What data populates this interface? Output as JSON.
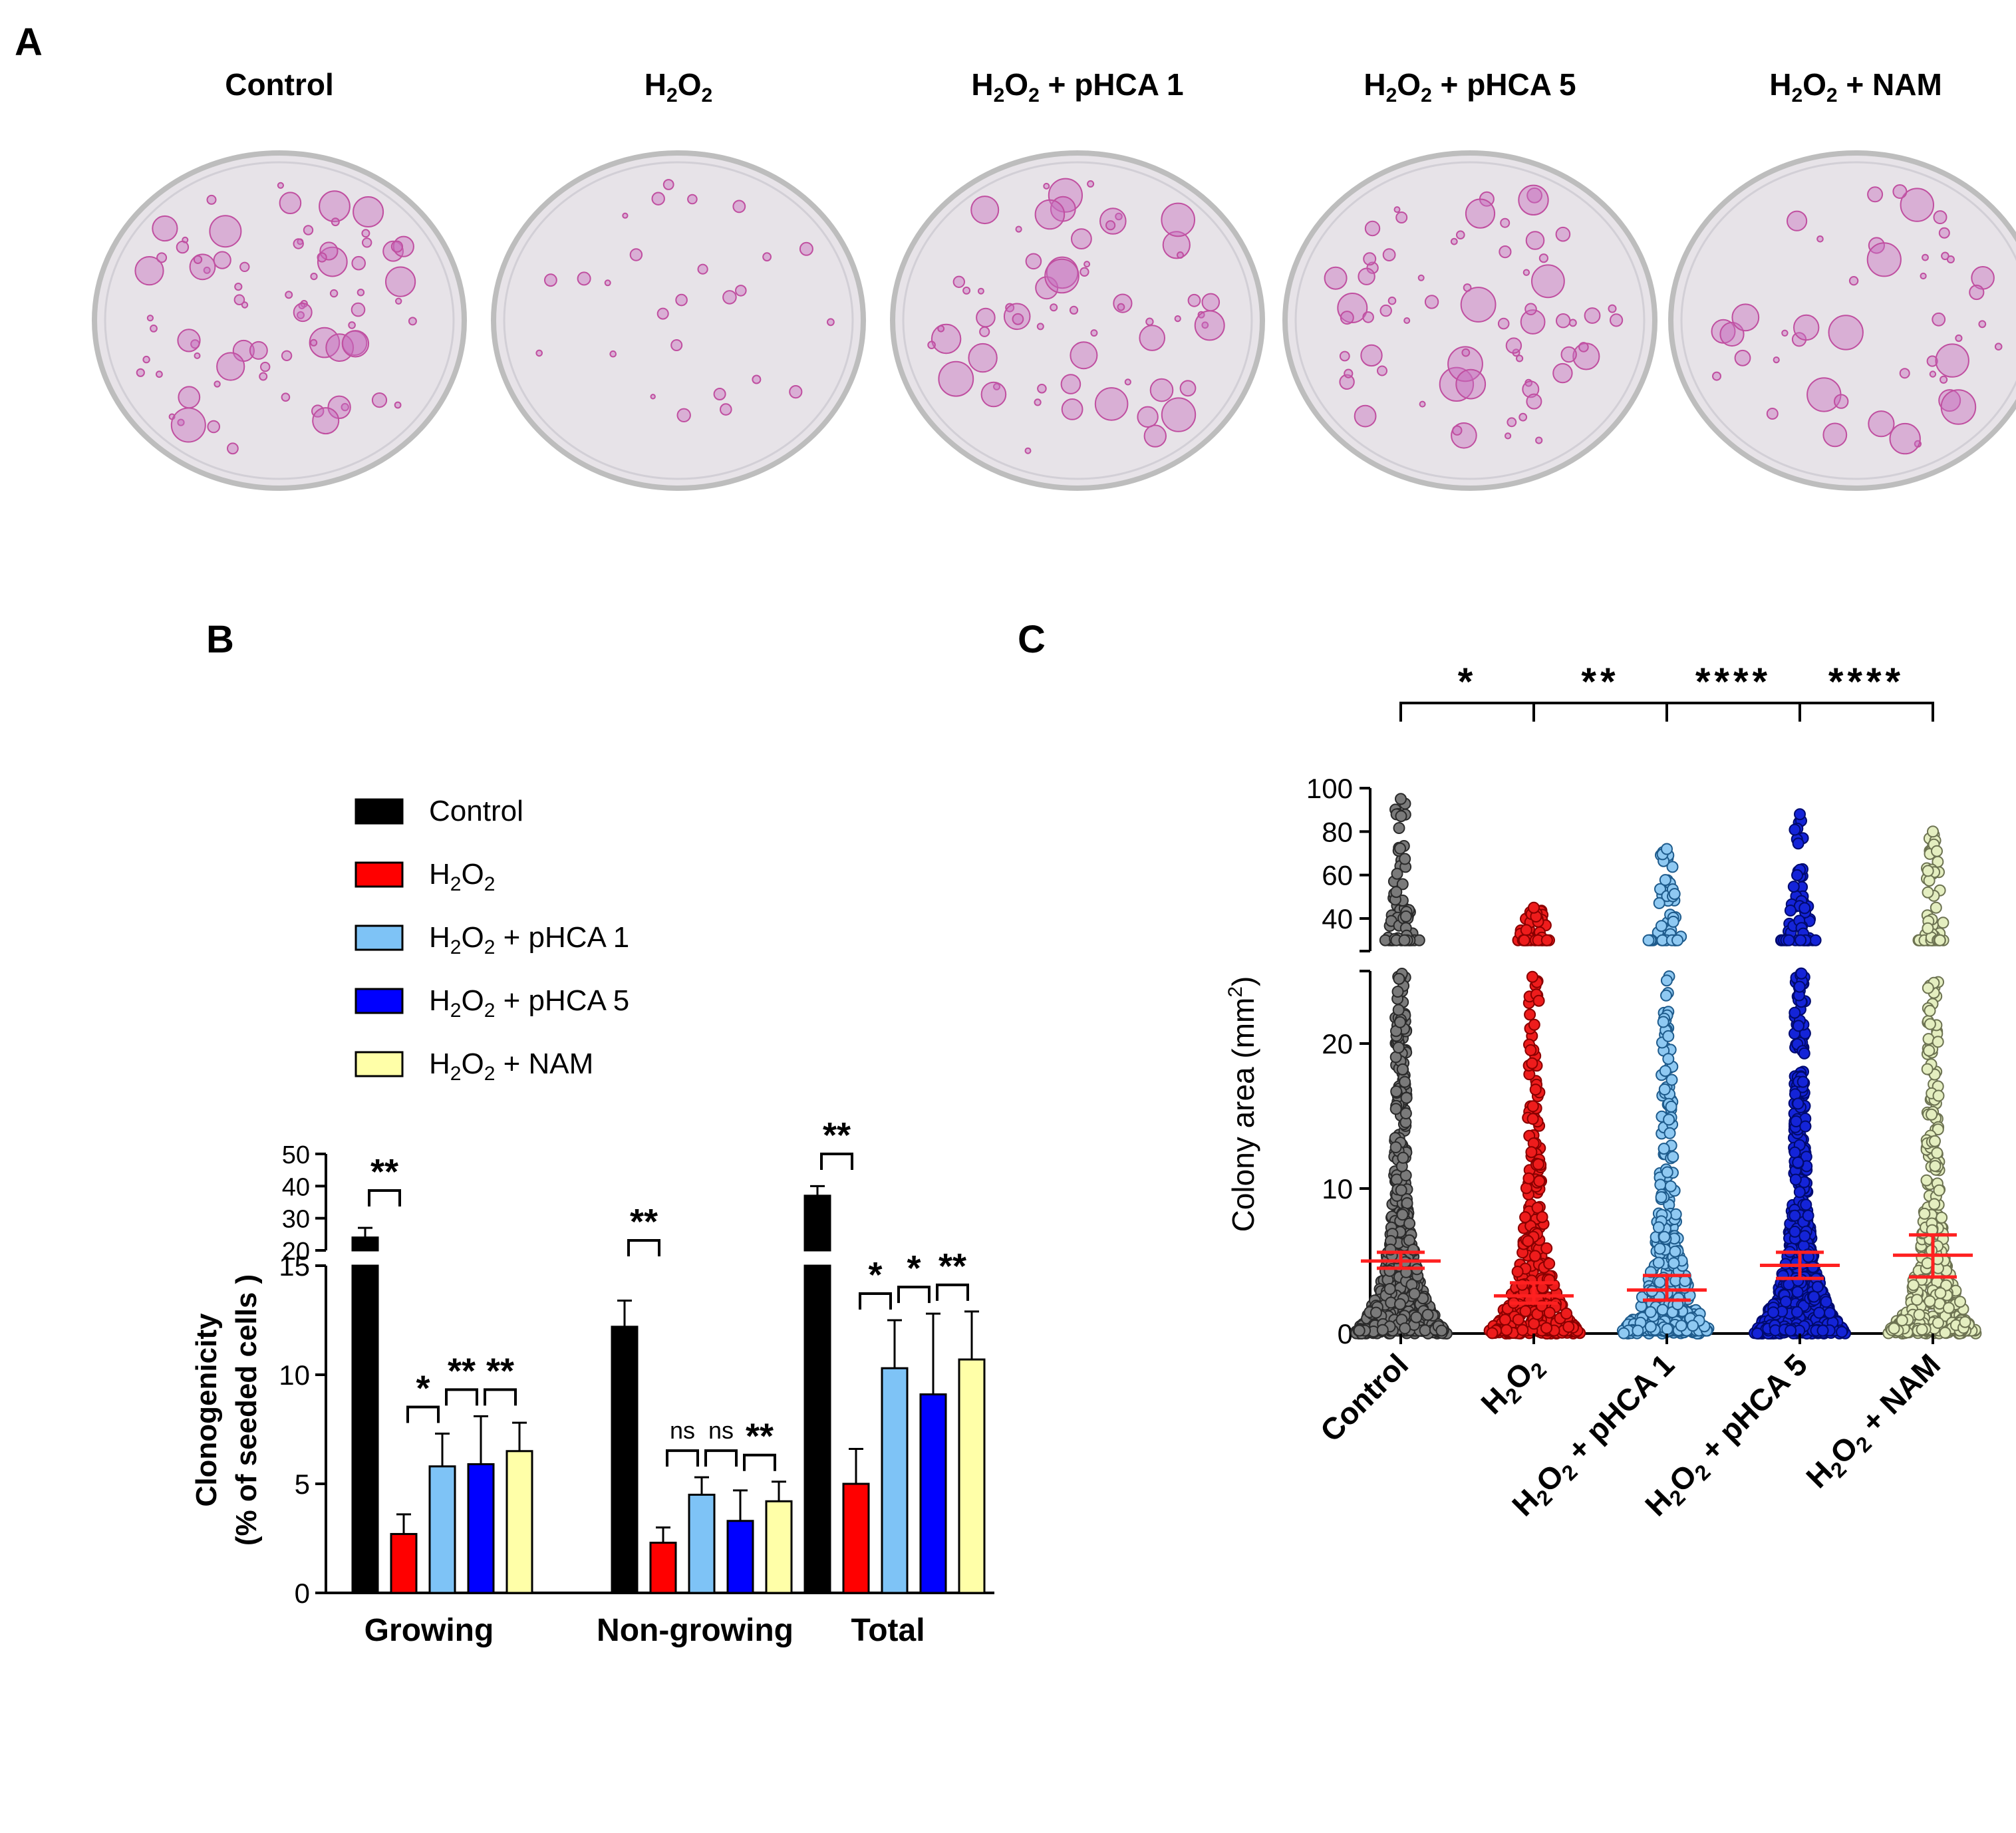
{
  "panels": {
    "a": "A",
    "b": "B",
    "c": "C"
  },
  "colors": {
    "control": "#000000",
    "h2o2": "#ff0000",
    "pHCA1": "#7ec3f6",
    "pHCA5": "#0000ff",
    "nam": "#ffffa8",
    "dish_rim": "#bdbdbd",
    "dish_fill": "#e7e3e8",
    "colony": "#c04fa0",
    "mean_bar": "#ff2020"
  },
  "panelA": {
    "dishes": [
      {
        "label_main": "Control",
        "h1": "",
        "h2": "",
        "rest": "",
        "colonies": 78,
        "big": true
      },
      {
        "label_main": "H",
        "h1": "2",
        "h2": "2",
        "rest": "",
        "o": "O",
        "colonies": 26,
        "big": false
      },
      {
        "label_main": "H",
        "h1": "2",
        "h2": "2",
        "rest": " + pHCA 1",
        "o": "O",
        "colonies": 62,
        "big": true
      },
      {
        "label_main": "H",
        "h1": "2",
        "h2": "2",
        "rest": " + pHCA 5",
        "o": "O",
        "colonies": 66,
        "big": true
      },
      {
        "label_main": "H",
        "h1": "2",
        "h2": "2",
        "rest": " + NAM",
        "o": "O",
        "colonies": 44,
        "big": true
      }
    ]
  },
  "chart_data": [
    {
      "type": "bar",
      "panel": "B",
      "ylabel": "Clonogenicity (% of seeded cells )",
      "ylabel_line1": "Clonogenicity",
      "ylabel_line2": "(% of seeded cells )",
      "ylim_lower": [
        0,
        15
      ],
      "ylim_upper": [
        20,
        50
      ],
      "yticks_lower": [
        "0",
        "5",
        "10",
        "15"
      ],
      "yticks_upper": [
        "20",
        "30",
        "40",
        "50"
      ],
      "categories": [
        "Growing",
        "Non-growing",
        "Total"
      ],
      "legend": [
        "Control",
        "H2O2",
        "H2O2 + pHCA 1",
        "H2O2 + pHCA 5",
        "H2O2 + NAM"
      ],
      "series": [
        {
          "name": "Control",
          "values": [
            24,
            12.2,
            37
          ],
          "errors": [
            3,
            1.2,
            3
          ]
        },
        {
          "name": "H2O2",
          "values": [
            2.7,
            2.3,
            5.0
          ],
          "errors": [
            0.9,
            0.7,
            1.6
          ]
        },
        {
          "name": "H2O2 + pHCA 1",
          "values": [
            5.8,
            4.5,
            10.3
          ],
          "errors": [
            1.5,
            0.8,
            2.2
          ]
        },
        {
          "name": "H2O2 + pHCA 5",
          "values": [
            5.9,
            3.3,
            9.1
          ],
          "errors": [
            2.2,
            1.4,
            3.7
          ]
        },
        {
          "name": "H2O2 + NAM",
          "values": [
            6.5,
            4.2,
            10.7
          ],
          "errors": [
            1.3,
            0.9,
            2.2
          ]
        }
      ],
      "annotations": [
        {
          "group": 0,
          "from": 0,
          "to": 1,
          "text": "**"
        },
        {
          "group": 0,
          "from": 1,
          "to": 2,
          "text": "*"
        },
        {
          "group": 0,
          "from": 2,
          "to": 3,
          "text": "**"
        },
        {
          "group": 0,
          "from": 3,
          "to": 4,
          "text": "**"
        },
        {
          "group": 1,
          "from": 0,
          "to": 1,
          "text": "**"
        },
        {
          "group": 1,
          "from": 1,
          "to": 2,
          "text": "ns"
        },
        {
          "group": 1,
          "from": 2,
          "to": 3,
          "text": "ns"
        },
        {
          "group": 1,
          "from": 3,
          "to": 4,
          "text": "**"
        },
        {
          "group": 2,
          "from": 0,
          "to": 1,
          "text": "**"
        },
        {
          "group": 2,
          "from": 1,
          "to": 2,
          "text": "*"
        },
        {
          "group": 2,
          "from": 2,
          "to": 3,
          "text": "*"
        },
        {
          "group": 2,
          "from": 3,
          "to": 4,
          "text": "**"
        }
      ]
    },
    {
      "type": "scatter",
      "panel": "C",
      "ylabel": "Colony area (mm²)",
      "ylabel_main": "Colony area (mm",
      "ylabel_sup": "2",
      "ylabel_end": ")",
      "ylim_lower": [
        0,
        25
      ],
      "ylim_upper": [
        25,
        100
      ],
      "yticks_lower": [
        "0",
        "10",
        "20"
      ],
      "yticks_upper": [
        "40",
        "60",
        "80",
        "100"
      ],
      "categories": [
        "Control",
        "H2O2",
        "H2O2 + pHCA 1",
        "H2O2 + pHCA 5",
        "H2O2 + NAM"
      ],
      "groups": [
        {
          "name": "Control",
          "mean": 5.0,
          "ci_low": 4.5,
          "ci_high": 5.6,
          "max": 95,
          "n": 900
        },
        {
          "name": "H2O2",
          "mean": 2.6,
          "ci_low": 2.1,
          "ci_high": 3.5,
          "max": 45,
          "n": 420
        },
        {
          "name": "H2O2 + pHCA 1",
          "mean": 3.0,
          "ci_low": 2.3,
          "ci_high": 4.0,
          "max": 72,
          "n": 420
        },
        {
          "name": "H2O2 + pHCA 5",
          "mean": 4.7,
          "ci_low": 3.8,
          "ci_high": 5.6,
          "max": 88,
          "n": 950
        },
        {
          "name": "H2O2 + NAM",
          "mean": 5.4,
          "ci_low": 3.9,
          "ci_high": 6.8,
          "max": 80,
          "n": 420
        }
      ],
      "annotations": [
        {
          "from": 0,
          "to": 1,
          "text": "*"
        },
        {
          "from": 1,
          "to": 2,
          "text": "**"
        },
        {
          "from": 2,
          "to": 3,
          "text": "****"
        },
        {
          "from": 3,
          "to": 4,
          "text": "****"
        }
      ]
    }
  ]
}
